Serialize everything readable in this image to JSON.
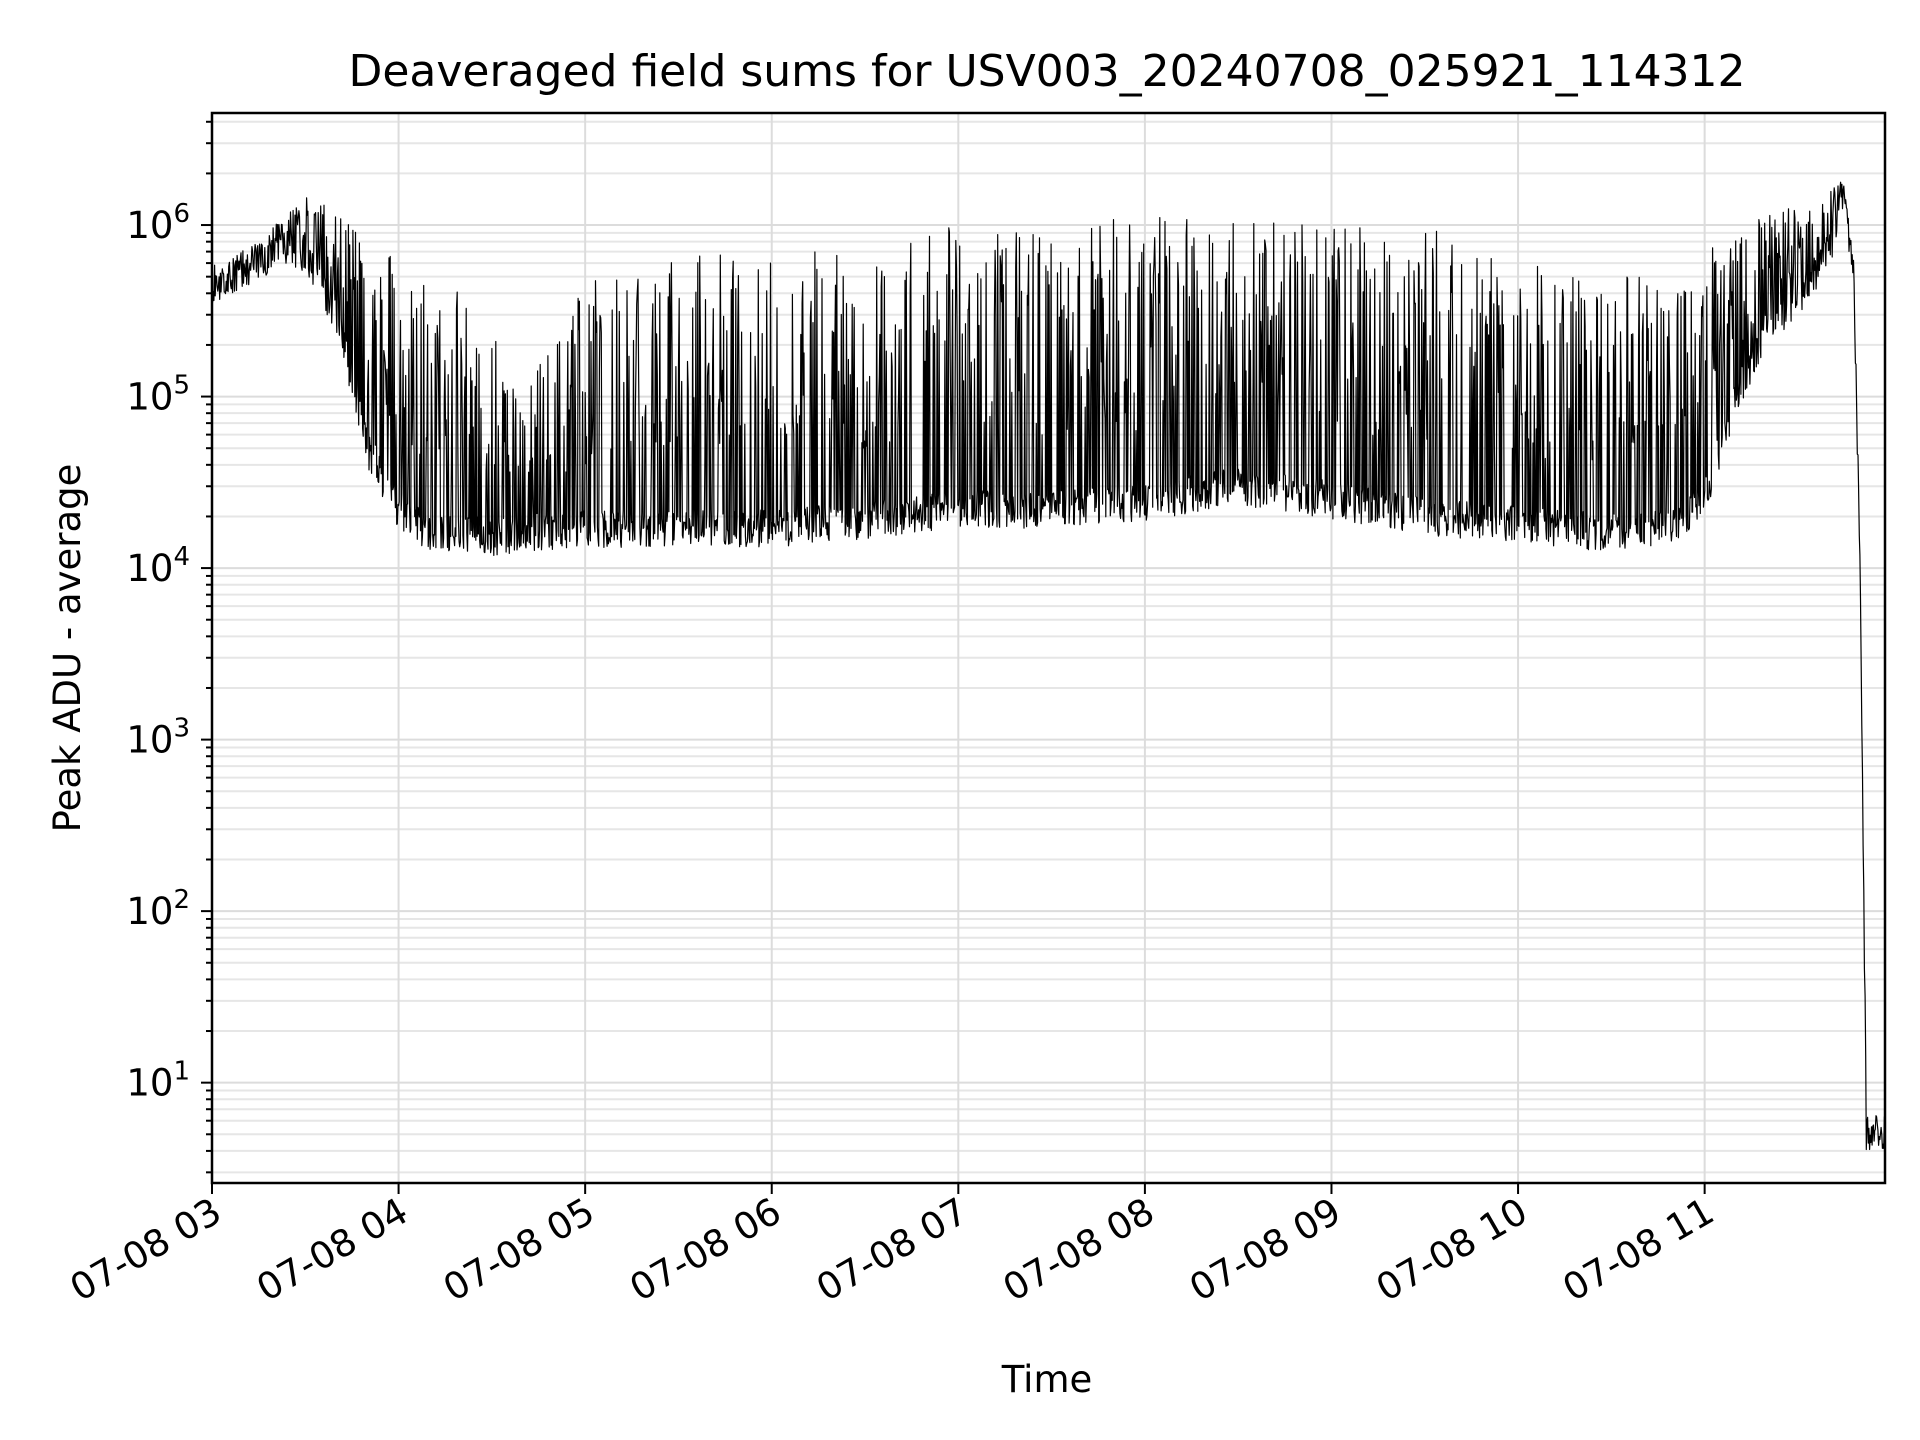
{
  "chart_data": {
    "type": "line",
    "title": "Deaveraged field sums for USV003_20240708_025921_114312",
    "xlabel": "Time",
    "ylabel": "Peak ADU - average",
    "yscale": "log",
    "xlim": [
      "2024-07-08 03:00",
      "2024-07-08 11:58"
    ],
    "ylim": [
      2.6,
      4500000
    ],
    "grid": true,
    "x_ticks": [
      {
        "t": "2024-07-08 03:00",
        "label": "07-08 03"
      },
      {
        "t": "2024-07-08 04:00",
        "label": "07-08 04"
      },
      {
        "t": "2024-07-08 05:00",
        "label": "07-08 05"
      },
      {
        "t": "2024-07-08 06:00",
        "label": "07-08 06"
      },
      {
        "t": "2024-07-08 07:00",
        "label": "07-08 07"
      },
      {
        "t": "2024-07-08 08:00",
        "label": "07-08 08"
      },
      {
        "t": "2024-07-08 09:00",
        "label": "07-08 09"
      },
      {
        "t": "2024-07-08 10:00",
        "label": "07-08 10"
      },
      {
        "t": "2024-07-08 11:00",
        "label": "07-08 11"
      }
    ],
    "y_ticks": [
      {
        "value": 10,
        "base": "10",
        "exp": "1"
      },
      {
        "value": 100,
        "base": "10",
        "exp": "2"
      },
      {
        "value": 1000,
        "base": "10",
        "exp": "3"
      },
      {
        "value": 10000,
        "base": "10",
        "exp": "4"
      },
      {
        "value": 100000,
        "base": "10",
        "exp": "5"
      },
      {
        "value": 1000000,
        "base": "10",
        "exp": "6"
      }
    ],
    "series": [
      {
        "color": "#000000",
        "envelope": {
          "x": [
            "2024-07-08 03:00",
            "2024-07-08 03:10",
            "2024-07-08 03:20",
            "2024-07-08 03:30",
            "2024-07-08 03:40",
            "2024-07-08 03:50",
            "2024-07-08 04:00",
            "2024-07-08 04:10",
            "2024-07-08 04:20",
            "2024-07-08 04:30",
            "2024-07-08 04:40",
            "2024-07-08 05:00",
            "2024-07-08 05:30",
            "2024-07-08 06:00",
            "2024-07-08 06:30",
            "2024-07-08 07:00",
            "2024-07-08 07:30",
            "2024-07-08 08:00",
            "2024-07-08 08:30",
            "2024-07-08 09:00",
            "2024-07-08 09:30",
            "2024-07-08 10:00",
            "2024-07-08 10:30",
            "2024-07-08 10:50",
            "2024-07-08 11:00",
            "2024-07-08 11:10",
            "2024-07-08 11:20",
            "2024-07-08 11:30",
            "2024-07-08 11:40",
            "2024-07-08 11:45",
            "2024-07-08 11:48",
            "2024-07-08 11:50",
            "2024-07-08 11:52",
            "2024-07-08 11:58"
          ],
          "baseline": [
            450000,
            550000,
            700000,
            700000,
            300000,
            50000,
            22000,
            16000,
            16000,
            15000,
            16000,
            17000,
            17000,
            17000,
            19000,
            22000,
            22000,
            24000,
            30000,
            25000,
            20000,
            18000,
            16000,
            17000,
            25000,
            100000,
            250000,
            380000,
            700000,
            1300000,
            500000,
            10000,
            5.2,
            5.2
          ],
          "peaks": [
            600000,
            650000,
            1000000,
            1500000,
            1400000,
            900000,
            700000,
            600000,
            400000,
            300000,
            100000,
            500000,
            700000,
            700000,
            800000,
            1000000,
            1100000,
            1200000,
            1100000,
            1100000,
            1000000,
            600000,
            500000,
            500000,
            700000,
            900000,
            1200000,
            1300000,
            1600000,
            2000000,
            500000,
            10000,
            5.8,
            5.8
          ]
        }
      }
    ]
  }
}
